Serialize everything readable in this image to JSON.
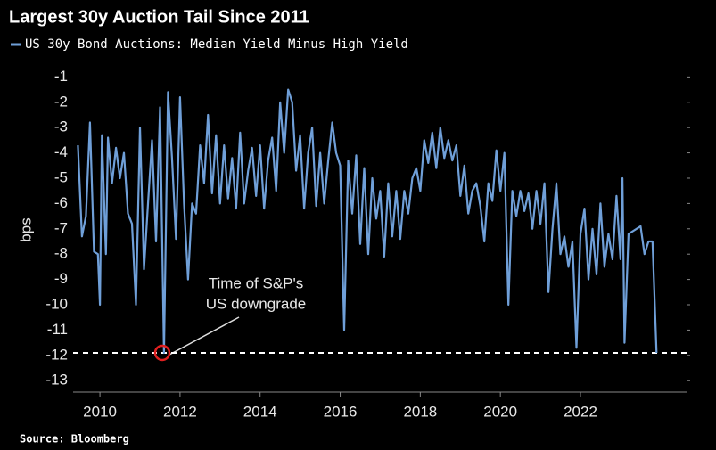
{
  "chart_data": {
    "type": "line",
    "title": "Largest 30y Auction Tail Since 2011",
    "y_label": "bps",
    "source": "Source: Bloomberg",
    "annotation": [
      "Time of S&P's",
      "US downgrade"
    ],
    "hline": -11.9,
    "xlim": [
      2009.33,
      2024.65
    ],
    "xticks": [
      2010,
      2012,
      2014,
      2016,
      2018,
      2020,
      2022
    ],
    "ylim": [
      -13.45,
      -0.6
    ],
    "yticks": [
      -1,
      -2,
      -3,
      -4,
      -5,
      -6,
      -7,
      -8,
      -9,
      -10,
      -11,
      -12,
      -13
    ],
    "grid": false,
    "x": [
      2009.45,
      2009.55,
      2009.65,
      2009.75,
      2009.85,
      2009.95,
      2010.0,
      2010.05,
      2010.15,
      2010.2,
      2010.3,
      2010.4,
      2010.5,
      2010.6,
      2010.7,
      2010.8,
      2010.9,
      2011.0,
      2011.1,
      2011.2,
      2011.3,
      2011.4,
      2011.5,
      2011.6,
      2011.7,
      2011.8,
      2011.9,
      2012.0,
      2012.1,
      2012.2,
      2012.3,
      2012.4,
      2012.5,
      2012.6,
      2012.7,
      2012.8,
      2012.9,
      2013.0,
      2013.1,
      2013.2,
      2013.3,
      2013.4,
      2013.5,
      2013.6,
      2013.7,
      2013.8,
      2013.9,
      2014.0,
      2014.1,
      2014.2,
      2014.3,
      2014.4,
      2014.5,
      2014.6,
      2014.7,
      2014.8,
      2014.9,
      2015.0,
      2015.1,
      2015.2,
      2015.3,
      2015.4,
      2015.5,
      2015.6,
      2015.7,
      2015.8,
      2015.9,
      2016.0,
      2016.1,
      2016.2,
      2016.3,
      2016.4,
      2016.5,
      2016.6,
      2016.7,
      2016.8,
      2016.9,
      2017.0,
      2017.1,
      2017.2,
      2017.3,
      2017.4,
      2017.5,
      2017.6,
      2017.7,
      2017.8,
      2017.9,
      2018.0,
      2018.1,
      2018.2,
      2018.3,
      2018.4,
      2018.5,
      2018.6,
      2018.7,
      2018.8,
      2018.9,
      2019.0,
      2019.1,
      2019.2,
      2019.3,
      2019.4,
      2019.5,
      2019.6,
      2019.7,
      2019.8,
      2019.9,
      2020.0,
      2020.1,
      2020.2,
      2020.3,
      2020.4,
      2020.5,
      2020.6,
      2020.7,
      2020.8,
      2020.9,
      2021.0,
      2021.1,
      2021.2,
      2021.3,
      2021.4,
      2021.5,
      2021.6,
      2021.7,
      2021.8,
      2021.9,
      2022.0,
      2022.1,
      2022.2,
      2022.3,
      2022.4,
      2022.5,
      2022.6,
      2022.7,
      2022.8,
      2022.9,
      2023.0,
      2023.05,
      2023.1,
      2023.2,
      2023.4,
      2023.5,
      2023.6,
      2023.7,
      2023.8,
      2023.9
    ],
    "series": [
      {
        "name": "US 30y Bond Auctions: Median Yield Minus High Yield",
        "color": "#6f9fd8",
        "values": [
          -3.7,
          -7.3,
          -6.5,
          -2.8,
          -7.9,
          -8.0,
          -10.0,
          -3.3,
          -8.0,
          -3.4,
          -5.2,
          -3.8,
          -5.0,
          -4.0,
          -6.4,
          -6.8,
          -10.0,
          -3.0,
          -8.6,
          -6.0,
          -3.5,
          -7.5,
          -2.2,
          -11.9,
          -1.6,
          -4.2,
          -7.4,
          -1.8,
          -6.0,
          -9.0,
          -6.0,
          -6.4,
          -3.7,
          -5.2,
          -2.5,
          -5.6,
          -3.3,
          -6.0,
          -3.7,
          -5.8,
          -4.2,
          -6.2,
          -3.2,
          -6.0,
          -4.7,
          -3.8,
          -5.7,
          -3.7,
          -6.2,
          -4.3,
          -3.4,
          -5.5,
          -2.0,
          -4.0,
          -1.5,
          -2.0,
          -4.7,
          -3.3,
          -6.2,
          -4.0,
          -3.0,
          -6.1,
          -4.0,
          -6.0,
          -4.3,
          -2.8,
          -4.0,
          -4.5,
          -11.0,
          -4.3,
          -6.4,
          -4.1,
          -7.6,
          -4.6,
          -8.0,
          -5.0,
          -6.6,
          -5.5,
          -8.1,
          -5.2,
          -7.3,
          -5.5,
          -7.4,
          -5.5,
          -6.4,
          -5.0,
          -4.6,
          -5.5,
          -3.5,
          -4.4,
          -3.2,
          -4.6,
          -3.0,
          -4.2,
          -3.5,
          -4.3,
          -3.7,
          -5.7,
          -4.5,
          -6.4,
          -5.5,
          -5.2,
          -6.1,
          -7.5,
          -5.2,
          -5.9,
          -3.9,
          -5.5,
          -4.0,
          -10.0,
          -5.5,
          -6.5,
          -5.5,
          -6.3,
          -5.6,
          -7.0,
          -5.5,
          -6.8,
          -5.2,
          -9.5,
          -7.0,
          -5.2,
          -8.0,
          -7.3,
          -8.5,
          -7.5,
          -11.7,
          -7.2,
          -6.2,
          -9.0,
          -7.0,
          -8.8,
          -6.0,
          -8.5,
          -7.2,
          -8.2,
          -5.7,
          -8.2,
          -5.0,
          -11.5,
          -7.2,
          -7.0,
          -6.9,
          -8.0,
          -7.5,
          -7.5,
          -11.9
        ]
      }
    ]
  }
}
